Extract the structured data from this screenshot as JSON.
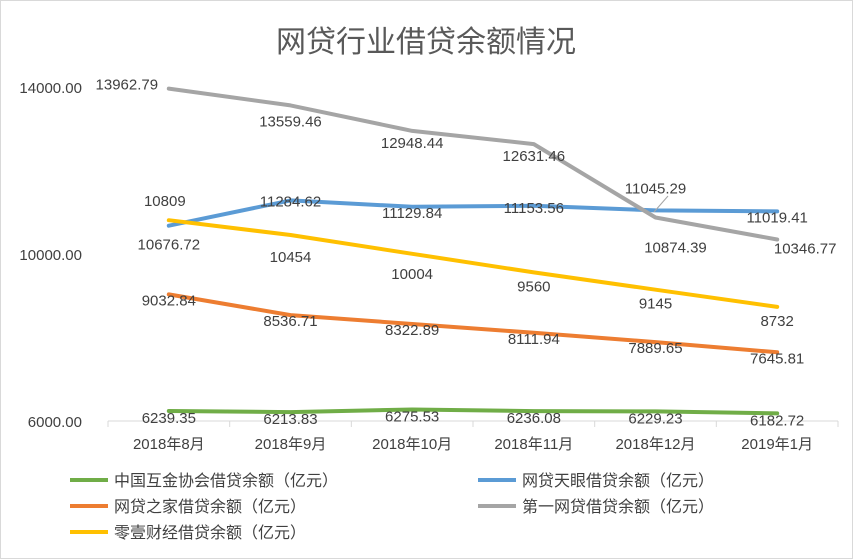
{
  "chart_data": {
    "type": "line",
    "title": "网贷行业借贷余额情况",
    "categories": [
      "2018年8月",
      "2018年9月",
      "2018年10月",
      "2018年11月",
      "2018年12月",
      "2019年1月"
    ],
    "ylim": [
      6000,
      14000
    ],
    "yticks": [
      "6000.00",
      "10000.00",
      "14000.00"
    ],
    "grid": false,
    "legend_position": "bottom",
    "series": [
      {
        "name": "中国互金协会借贷余额（亿元）",
        "color": "#70ad47",
        "values": [
          6239.35,
          6213.83,
          6275.53,
          6236.08,
          6229.23,
          6182.72
        ],
        "labels": [
          "6239.35",
          "6213.83",
          "6275.53",
          "6236.08",
          "6229.23",
          "6182.72"
        ]
      },
      {
        "name": "网贷天眼借贷余额（亿元）",
        "color": "#5b9bd5",
        "values": [
          10676.72,
          11284.62,
          11129.84,
          11153.56,
          11045.29,
          11019.41
        ],
        "labels": [
          "10676.72",
          "11284.62",
          "11129.84",
          "11153.56",
          "11045.29",
          "11019.41"
        ]
      },
      {
        "name": "网贷之家借贷余额（亿元）",
        "color": "#ed7d31",
        "values": [
          9032.84,
          8536.71,
          8322.89,
          8111.94,
          7889.65,
          7645.81
        ],
        "labels": [
          "9032.84",
          "8536.71",
          "8322.89",
          "8111.94",
          "7889.65",
          "7645.81"
        ]
      },
      {
        "name": "第一网贷借贷余额（亿元）",
        "color": "#a5a5a5",
        "values": [
          13962.79,
          13559.46,
          12948.44,
          12631.46,
          10874.39,
          10346.77
        ],
        "labels": [
          "13962.79",
          "13559.46",
          "12948.44",
          "12631.46",
          "10874.39",
          "10346.77"
        ]
      },
      {
        "name": "零壹财经借贷余额（亿元）",
        "color": "#ffc000",
        "values": [
          10809,
          10454,
          10004,
          9560,
          9145,
          8732
        ],
        "labels": [
          "10809",
          "10454",
          "10004",
          "9560",
          "9145",
          "8732"
        ]
      }
    ]
  }
}
